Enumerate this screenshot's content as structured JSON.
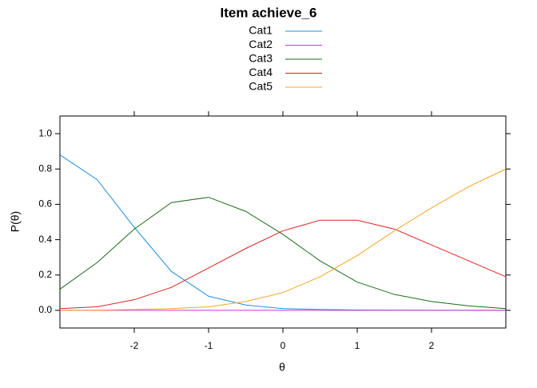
{
  "chart_data": {
    "type": "line",
    "title": "Item achieve_6",
    "xlabel": "θ",
    "ylabel": "P(θ)",
    "x": [
      -3,
      -2.5,
      -2,
      -1.5,
      -1,
      -0.5,
      0,
      0.5,
      1,
      1.5,
      2,
      2.5,
      3
    ],
    "series": [
      {
        "name": "Cat1",
        "color": "#1f8fdc",
        "values": [
          0.88,
          0.74,
          0.47,
          0.22,
          0.08,
          0.03,
          0.01,
          0.005,
          0.002,
          0.001,
          0.0,
          0.0,
          0.0
        ]
      },
      {
        "name": "Cat2",
        "color": "#cc33cc",
        "values": [
          0.0,
          0.0,
          0.0,
          0.0,
          0.0,
          0.0,
          0.0,
          0.0,
          0.0,
          0.0,
          0.0,
          0.0,
          0.0
        ]
      },
      {
        "name": "Cat3",
        "color": "#1a6b1a",
        "values": [
          0.12,
          0.27,
          0.46,
          0.61,
          0.64,
          0.56,
          0.43,
          0.28,
          0.16,
          0.09,
          0.05,
          0.025,
          0.01
        ]
      },
      {
        "name": "Cat4",
        "color": "#dd2222",
        "values": [
          0.01,
          0.02,
          0.06,
          0.13,
          0.24,
          0.35,
          0.45,
          0.51,
          0.51,
          0.46,
          0.37,
          0.28,
          0.19
        ]
      },
      {
        "name": "Cat5",
        "color": "#f5a623",
        "values": [
          0.0,
          0.001,
          0.005,
          0.01,
          0.02,
          0.05,
          0.1,
          0.19,
          0.31,
          0.45,
          0.58,
          0.7,
          0.8
        ]
      }
    ],
    "xlim": [
      -3,
      3
    ],
    "ylim": [
      -0.1,
      1.1
    ],
    "xticks": [
      -2,
      -1,
      0,
      1,
      2
    ],
    "yticks": [
      {
        "value": 0,
        "label": "0.0"
      },
      {
        "value": 0.2,
        "label": "0.2"
      },
      {
        "value": 0.4,
        "label": "0.4"
      },
      {
        "value": 0.6,
        "label": "0.6"
      },
      {
        "value": 0.8,
        "label": "0.8"
      },
      {
        "value": 1,
        "label": "1.0"
      }
    ],
    "legend": "top"
  }
}
